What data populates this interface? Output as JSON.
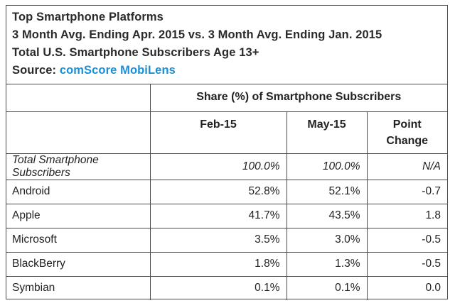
{
  "title_lines": [
    "Top Smartphone Platforms",
    "3 Month Avg. Ending Apr. 2015 vs. 3 Month Avg. Ending Jan. 2015",
    "Total U.S. Smartphone Subscribers Age 13+"
  ],
  "source_label": "Source: ",
  "source_name": "comScore MobiLens",
  "table": {
    "group_header": "Share (%) of Smartphone Subscribers",
    "columns": [
      "Feb-15",
      "May-15",
      "Point\nChange"
    ],
    "rows": [
      {
        "label": "Total Smartphone Subscribers",
        "feb": "100.0%",
        "may": "100.0%",
        "change": "N/A"
      },
      {
        "label": "Android",
        "feb": "52.8%",
        "may": "52.1%",
        "change": "-0.7"
      },
      {
        "label": "Apple",
        "feb": "41.7%",
        "may": "43.5%",
        "change": "1.8"
      },
      {
        "label": "Microsoft",
        "feb": "3.5%",
        "may": "3.0%",
        "change": "-0.5"
      },
      {
        "label": "BlackBerry",
        "feb": "1.8%",
        "may": "1.3%",
        "change": "-0.5"
      },
      {
        "label": "Symbian",
        "feb": "0.1%",
        "may": "0.1%",
        "change": "0.0"
      }
    ]
  },
  "chart_data": {
    "type": "table",
    "title": "Top Smartphone Platforms",
    "subtitle": "3 Month Avg. Ending Apr. 2015 vs. 3 Month Avg. Ending Jan. 2015 — Total U.S. Smartphone Subscribers Age 13+",
    "source": "comScore MobiLens",
    "columns": [
      "Feb-15",
      "May-15",
      "Point Change"
    ],
    "categories": [
      "Total Smartphone Subscribers",
      "Android",
      "Apple",
      "Microsoft",
      "BlackBerry",
      "Symbian"
    ],
    "series": [
      {
        "name": "Feb-15",
        "values": [
          100.0,
          52.8,
          41.7,
          3.5,
          1.8,
          0.1
        ]
      },
      {
        "name": "May-15",
        "values": [
          100.0,
          52.1,
          43.5,
          3.0,
          1.3,
          0.1
        ]
      },
      {
        "name": "Point Change",
        "values": [
          null,
          -0.7,
          1.8,
          -0.5,
          -0.5,
          0.0
        ]
      }
    ]
  }
}
